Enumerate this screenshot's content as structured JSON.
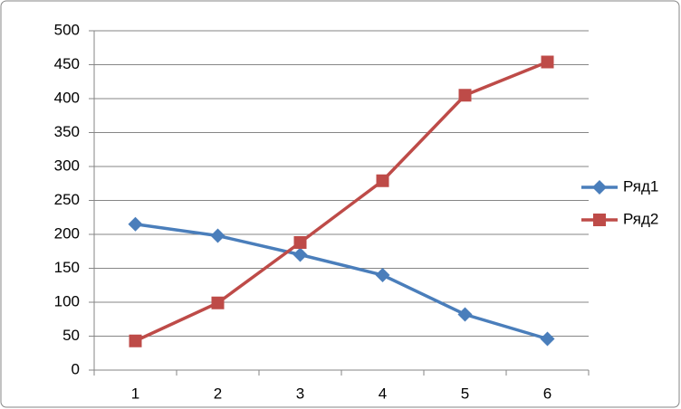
{
  "chart_data": {
    "type": "line",
    "categories": [
      "1",
      "2",
      "3",
      "4",
      "5",
      "6"
    ],
    "series": [
      {
        "name": "Ряд1",
        "color": "#4a7ebb",
        "marker": "diamond",
        "values": [
          215,
          198,
          170,
          140,
          82,
          46
        ]
      },
      {
        "name": "Ряд2",
        "color": "#be4b48",
        "marker": "square",
        "values": [
          43,
          99,
          188,
          279,
          405,
          454
        ]
      }
    ],
    "ylim": [
      0,
      500
    ],
    "yticks": [
      0,
      50,
      100,
      150,
      200,
      250,
      300,
      350,
      400,
      450,
      500
    ],
    "grid": true,
    "legend": "right"
  }
}
